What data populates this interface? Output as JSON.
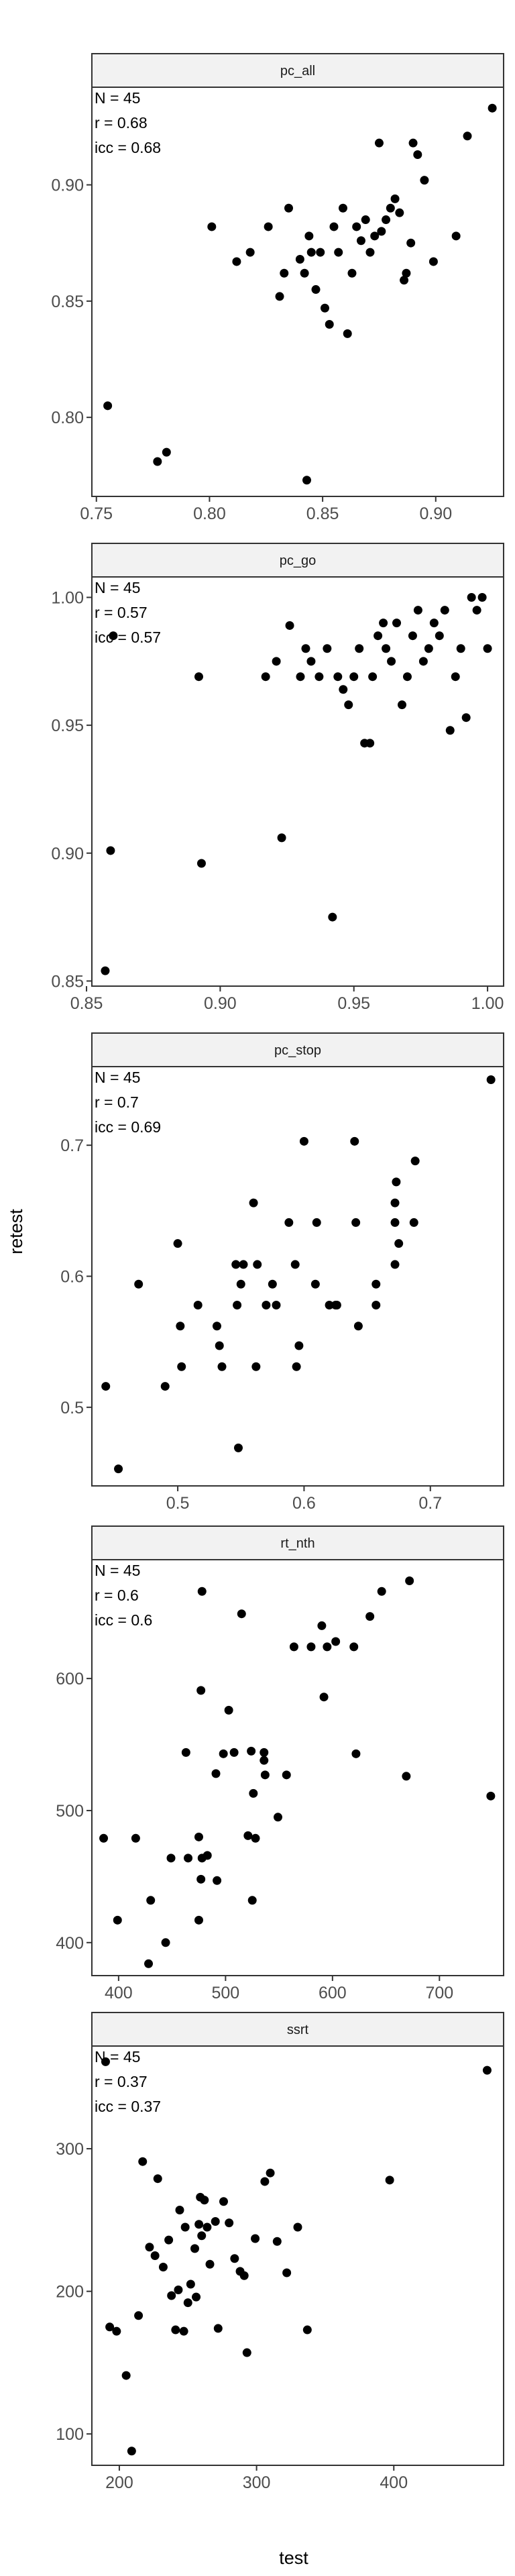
{
  "figure": {
    "xlabel": "test",
    "ylabel": "retest"
  },
  "chart_data": [
    {
      "type": "scatter",
      "title": "pc_all",
      "xlabel": "test",
      "ylabel": "retest",
      "xlim": [
        0.748,
        0.93
      ],
      "ylim": [
        0.766,
        0.942
      ],
      "xticks": [
        0.75,
        0.8,
        0.85,
        0.9
      ],
      "xtick_labels": [
        "0.75",
        "0.80",
        "0.85",
        "0.90"
      ],
      "yticks": [
        0.8,
        0.85,
        0.9
      ],
      "ytick_labels": [
        "0.80",
        "0.85",
        "0.90"
      ],
      "annotations": [
        "N = 45",
        "r = 0.68",
        "icc = 0.68"
      ],
      "grid": false,
      "x": [
        0.755,
        0.777,
        0.781,
        0.801,
        0.812,
        0.818,
        0.826,
        0.831,
        0.833,
        0.835,
        0.84,
        0.842,
        0.844,
        0.845,
        0.847,
        0.849,
        0.851,
        0.853,
        0.855,
        0.857,
        0.859,
        0.861,
        0.863,
        0.865,
        0.867,
        0.869,
        0.871,
        0.873,
        0.875,
        0.876,
        0.878,
        0.88,
        0.882,
        0.884,
        0.886,
        0.887,
        0.889,
        0.89,
        0.892,
        0.895,
        0.899,
        0.909,
        0.914,
        0.925,
        0.843
      ],
      "y": [
        0.805,
        0.781,
        0.785,
        0.882,
        0.867,
        0.871,
        0.882,
        0.852,
        0.862,
        0.89,
        0.868,
        0.862,
        0.878,
        0.871,
        0.855,
        0.871,
        0.847,
        0.84,
        0.882,
        0.871,
        0.89,
        0.836,
        0.862,
        0.882,
        0.876,
        0.885,
        0.871,
        0.878,
        0.918,
        0.88,
        0.885,
        0.89,
        0.894,
        0.888,
        0.859,
        0.862,
        0.875,
        0.918,
        0.913,
        0.902,
        0.867,
        0.878,
        0.921,
        0.933,
        0.773
      ]
    },
    {
      "type": "scatter",
      "title": "pc_go",
      "xlabel": "test",
      "ylabel": "retest",
      "xlim": [
        0.852,
        1.006
      ],
      "ylim": [
        0.848,
        1.008
      ],
      "xticks": [
        0.85,
        0.9,
        0.95,
        1.0
      ],
      "xtick_labels": [
        "0.85",
        "0.90",
        "0.95",
        "1.00"
      ],
      "yticks": [
        0.85,
        0.9,
        0.95,
        1.0
      ],
      "ytick_labels": [
        "0.85",
        "0.90",
        "0.95",
        "1.00"
      ],
      "annotations": [
        "N = 45",
        "r = 0.57",
        "icc = 0.57"
      ],
      "grid": false,
      "x": [
        0.857,
        0.859,
        0.86,
        0.892,
        0.893,
        0.917,
        0.921,
        0.923,
        0.926,
        0.93,
        0.932,
        0.934,
        0.937,
        0.94,
        0.942,
        0.944,
        0.946,
        0.948,
        0.95,
        0.952,
        0.954,
        0.956,
        0.957,
        0.959,
        0.961,
        0.962,
        0.964,
        0.966,
        0.968,
        0.97,
        0.972,
        0.974,
        0.976,
        0.978,
        0.98,
        0.982,
        0.984,
        0.986,
        0.988,
        0.99,
        0.992,
        0.994,
        0.996,
        0.998,
        1.0
      ],
      "y": [
        0.854,
        0.901,
        0.985,
        0.969,
        0.896,
        0.969,
        0.975,
        0.906,
        0.989,
        0.969,
        0.98,
        0.975,
        0.969,
        0.98,
        0.875,
        0.969,
        0.964,
        0.958,
        0.969,
        0.98,
        0.943,
        0.943,
        0.969,
        0.985,
        0.99,
        0.98,
        0.975,
        0.99,
        0.958,
        0.969,
        0.985,
        0.995,
        0.975,
        0.98,
        0.99,
        0.985,
        0.995,
        0.948,
        0.969,
        0.98,
        0.953,
        1.0,
        0.995,
        1.0,
        0.98
      ]
    },
    {
      "type": "scatter",
      "title": "pc_stop",
      "xlabel": "test",
      "ylabel": "retest",
      "xlim": [
        0.432,
        0.758
      ],
      "ylim": [
        0.44,
        0.76
      ],
      "xticks": [
        0.5,
        0.6,
        0.7
      ],
      "xtick_labels": [
        "0.5",
        "0.6",
        "0.7"
      ],
      "yticks": [
        0.5,
        0.6,
        0.7
      ],
      "ytick_labels": [
        "0.5",
        "0.6",
        "0.7"
      ],
      "annotations": [
        "N = 45",
        "r = 0.7",
        "icc = 0.69"
      ],
      "grid": false,
      "x": [
        0.443,
        0.453,
        0.469,
        0.49,
        0.5,
        0.502,
        0.503,
        0.516,
        0.531,
        0.533,
        0.535,
        0.546,
        0.547,
        0.55,
        0.552,
        0.56,
        0.562,
        0.563,
        0.57,
        0.575,
        0.578,
        0.588,
        0.593,
        0.594,
        0.596,
        0.6,
        0.609,
        0.61,
        0.62,
        0.625,
        0.626,
        0.64,
        0.641,
        0.643,
        0.657,
        0.657,
        0.672,
        0.672,
        0.673,
        0.672,
        0.675,
        0.687,
        0.688,
        0.748,
        0.548
      ],
      "y": [
        0.516,
        0.453,
        0.594,
        0.516,
        0.625,
        0.562,
        0.531,
        0.578,
        0.562,
        0.547,
        0.531,
        0.609,
        0.578,
        0.594,
        0.609,
        0.656,
        0.531,
        0.609,
        0.578,
        0.594,
        0.578,
        0.641,
        0.609,
        0.531,
        0.547,
        0.703,
        0.594,
        0.641,
        0.578,
        0.578,
        0.578,
        0.703,
        0.641,
        0.562,
        0.594,
        0.578,
        0.656,
        0.641,
        0.672,
        0.609,
        0.625,
        0.641,
        0.688,
        0.75,
        0.469
      ]
    },
    {
      "type": "scatter",
      "title": "rt_nth",
      "xlabel": "test",
      "ylabel": "retest",
      "xlim": [
        375,
        760
      ],
      "ylim": [
        375,
        690
      ],
      "xticks": [
        400,
        500,
        600,
        700
      ],
      "xtick_labels": [
        "400",
        "500",
        "600",
        "700"
      ],
      "yticks": [
        400,
        500,
        600
      ],
      "ytick_labels": [
        "400",
        "500",
        "600"
      ],
      "annotations": [
        "N = 45",
        "r = 0.6",
        "icc = 0.6"
      ],
      "grid": false,
      "x": [
        386,
        399,
        416,
        428,
        430,
        444,
        449,
        463,
        465,
        475,
        475,
        477,
        477,
        478,
        478,
        483,
        491,
        492,
        498,
        503,
        508,
        515,
        521,
        524,
        525,
        526,
        528,
        536,
        536,
        537,
        549,
        557,
        564,
        580,
        590,
        592,
        595,
        603,
        620,
        622,
        635,
        646,
        669,
        672,
        748
      ],
      "y": [
        479,
        417,
        479,
        384,
        432,
        400,
        464,
        544,
        464,
        417,
        480,
        448,
        591,
        666,
        464,
        466,
        528,
        447,
        543,
        576,
        544,
        649,
        481,
        545,
        432,
        513,
        479,
        544,
        538,
        527,
        495,
        527,
        624,
        624,
        640,
        586,
        624,
        628,
        624,
        543,
        647,
        666,
        526,
        674,
        511
      ]
    },
    {
      "type": "scatter",
      "title": "ssrt",
      "xlabel": "test",
      "ylabel": "retest",
      "xlim": [
        180,
        480
      ],
      "ylim": [
        78,
        372
      ],
      "xticks": [
        200,
        300,
        400
      ],
      "xtick_labels": [
        "200",
        "300",
        "400"
      ],
      "yticks": [
        100,
        200,
        300
      ],
      "ytick_labels": [
        "100",
        "200",
        "300"
      ],
      "annotations": [
        "N = 45",
        "r = 0.37",
        "icc = 0.37"
      ],
      "grid": false,
      "x": [
        190,
        193,
        198,
        205,
        209,
        214,
        217,
        222,
        226,
        228,
        232,
        236,
        238,
        241,
        243,
        244,
        247,
        248,
        250,
        252,
        255,
        256,
        258,
        259,
        260,
        262,
        264,
        266,
        270,
        272,
        276,
        280,
        284,
        288,
        291,
        293,
        299,
        306,
        310,
        315,
        322,
        330,
        337,
        397,
        468
      ],
      "y": [
        361,
        175,
        172,
        141,
        88,
        183,
        291,
        231,
        225,
        279,
        217,
        236,
        197,
        173,
        201,
        257,
        172,
        245,
        192,
        205,
        230,
        196,
        247,
        266,
        239,
        264,
        245,
        219,
        249,
        174,
        263,
        248,
        223,
        214,
        211,
        157,
        237,
        277,
        283,
        235,
        213,
        245,
        173,
        278,
        355
      ]
    }
  ]
}
